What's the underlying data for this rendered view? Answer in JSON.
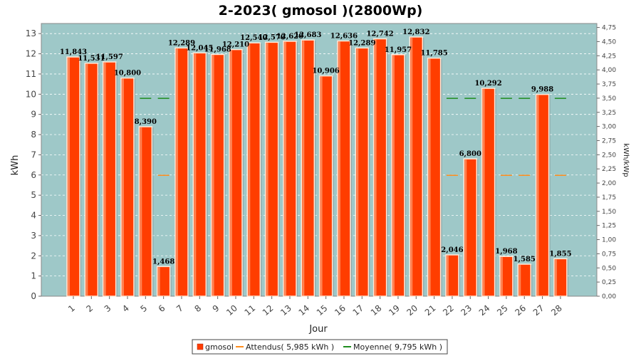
{
  "chart_data": {
    "type": "bar",
    "title": "2-2023( gmosol )(2800Wp)",
    "xlabel": "Jour",
    "ylabel": "kWh",
    "y2label": "kWh/kWp",
    "ylim": [
      0,
      13.5
    ],
    "y2lim": [
      0,
      4.82
    ],
    "yticks": [
      0,
      1,
      2,
      3,
      4,
      5,
      6,
      7,
      8,
      9,
      10,
      11,
      12,
      13
    ],
    "y2ticks": [
      "0,00",
      "0,25",
      "0,50",
      "0,75",
      "1,00",
      "1,25",
      "1,50",
      "1,75",
      "2,00",
      "2,25",
      "2,50",
      "2,75",
      "3,00",
      "3,25",
      "3,50",
      "3,75",
      "4,00",
      "4,25",
      "4,50",
      "4,75"
    ],
    "categories": [
      "1",
      "2",
      "3",
      "4",
      "5",
      "6",
      "7",
      "8",
      "9",
      "10",
      "11",
      "12",
      "13",
      "14",
      "15",
      "16",
      "17",
      "18",
      "19",
      "20",
      "21",
      "22",
      "23",
      "24",
      "25",
      "26",
      "27",
      "28"
    ],
    "series": [
      {
        "name": "gmosol",
        "color": "#ff3d00",
        "values": [
          11.843,
          11.531,
          11.597,
          10.8,
          8.39,
          1.468,
          12.289,
          12.045,
          11.968,
          12.21,
          12.54,
          12.57,
          12.62,
          12.683,
          10.906,
          12.636,
          12.289,
          12.742,
          11.957,
          12.832,
          11.785,
          2.046,
          6.8,
          10.292,
          1.968,
          1.585,
          9.988,
          1.855
        ],
        "labels": [
          "11,843",
          "11,531",
          "11,597",
          "10,800",
          "8,390",
          "1,468",
          "12,289",
          "12,045",
          "11,968",
          "12,210",
          "12,540",
          "12,570",
          "12,620",
          "12,683",
          "10,906",
          "12,636",
          "12,289",
          "12,742",
          "11,957",
          "12,832",
          "11,785",
          "2,046",
          "6,800",
          "10,292",
          "1,968",
          "1,585",
          "9,988",
          "1,855"
        ]
      },
      {
        "name": "Attendus( 5,985 kWh )",
        "color": "#ff8c1a",
        "values": [
          5.985,
          5.985,
          5.985,
          5.985,
          5.985,
          5.985,
          5.985,
          5.985,
          5.985,
          5.985,
          5.985,
          5.985,
          5.985,
          5.985,
          5.985,
          5.985,
          5.985,
          5.985,
          5.985,
          5.985,
          5.985,
          5.985,
          5.985,
          5.985,
          5.985,
          5.985,
          5.985,
          5.985
        ]
      },
      {
        "name": "Moyenne( 9,795 kWh )",
        "color": "#1e8c1e",
        "values": [
          9.795,
          9.795,
          9.795,
          9.795,
          9.795,
          9.795,
          9.795,
          9.795,
          9.795,
          9.795,
          9.795,
          9.795,
          9.795,
          9.795,
          9.795,
          9.795,
          9.795,
          9.795,
          9.795,
          9.795,
          9.795,
          9.795,
          9.795,
          9.795,
          9.795,
          9.795,
          9.795,
          9.795
        ]
      }
    ],
    "plot_background": "#9ec8c8",
    "grid": true,
    "legend_position": "bottom-center"
  }
}
